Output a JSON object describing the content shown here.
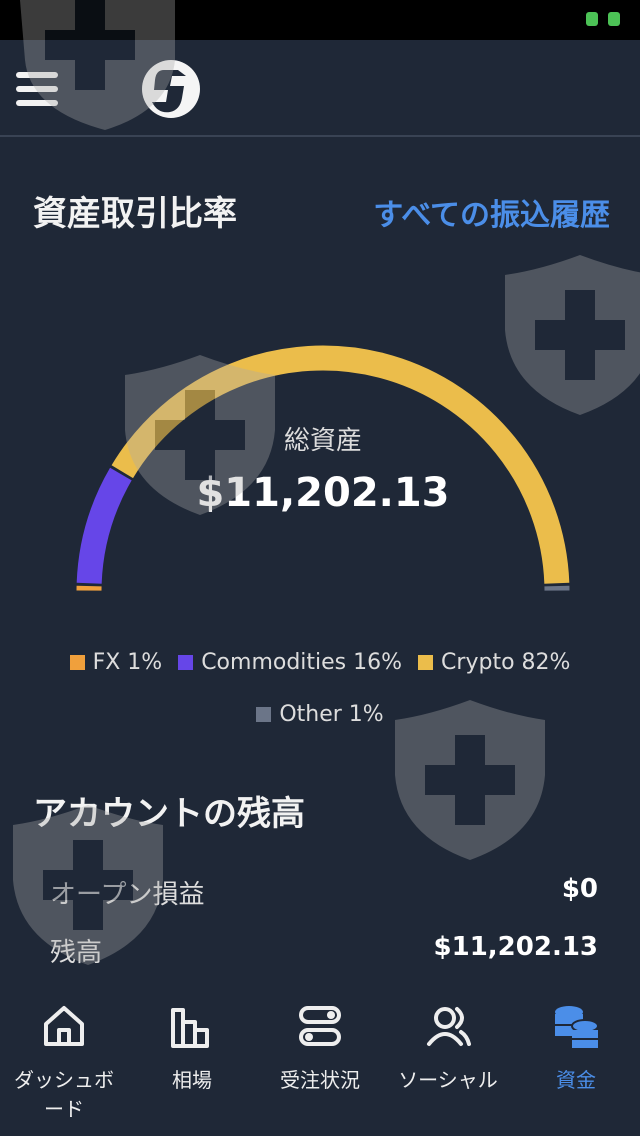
{
  "header": {
    "menu_icon": "hamburger-icon",
    "logo": "5-logo"
  },
  "section1": {
    "title": "資産取引比率",
    "link": "すべての振込履歴"
  },
  "chart_data": {
    "type": "gauge",
    "total_label": "総資産",
    "total": "$11,202.13",
    "segments": [
      {
        "name": "FX",
        "percent": 1,
        "label": "FX 1%",
        "color": "#f0a03c"
      },
      {
        "name": "Commodities",
        "percent": 16,
        "label": "Commodities 16%",
        "color": "#6646e8"
      },
      {
        "name": "Crypto",
        "percent": 82,
        "label": "Crypto 82%",
        "color": "#ebbd4b"
      },
      {
        "name": "Other",
        "percent": 1,
        "label": "Other 1%",
        "color": "#6b7588"
      }
    ]
  },
  "section2": {
    "title": "アカウントの残高",
    "rows": [
      {
        "label": "オープン損益",
        "value": "$0"
      },
      {
        "label": "残高",
        "value": "$11,202.13"
      }
    ]
  },
  "nav": [
    {
      "label": "ダッシュボード",
      "icon": "home-icon"
    },
    {
      "label": "相場",
      "icon": "bar-chart-icon"
    },
    {
      "label": "受注状況",
      "icon": "toggles-icon"
    },
    {
      "label": "ソーシャル",
      "icon": "users-icon"
    },
    {
      "label": "資金",
      "icon": "coins-icon",
      "active": true
    }
  ],
  "colors": {
    "accent": "#4b8ee8",
    "background": "#1f2837"
  }
}
